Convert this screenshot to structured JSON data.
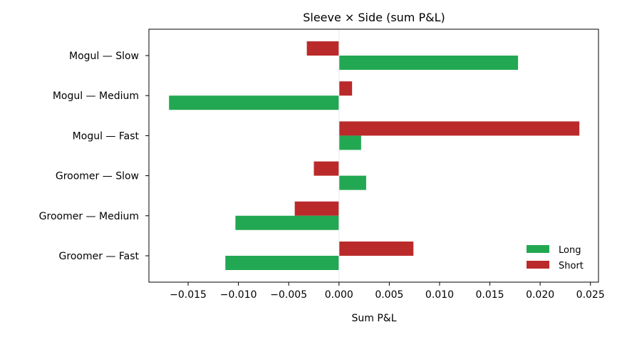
{
  "chart_data": {
    "type": "bar",
    "orientation": "horizontal",
    "title": "Sleeve × Side (sum P&L)",
    "xlabel": "Sum P&L",
    "ylabel": "",
    "categories": [
      "Mogul — Slow",
      "Mogul — Medium",
      "Mogul — Fast",
      "Groomer — Slow",
      "Groomer — Medium",
      "Groomer — Fast"
    ],
    "series": [
      {
        "name": "Long",
        "color": "#22a852",
        "values": [
          0.0178,
          -0.0169,
          0.0022,
          0.0027,
          -0.0103,
          -0.0113
        ]
      },
      {
        "name": "Short",
        "color": "#bb2a2a",
        "values": [
          -0.0032,
          0.0013,
          0.0239,
          -0.0025,
          -0.0044,
          0.0074
        ]
      }
    ],
    "xlim": [
      -0.0189,
      0.0258
    ],
    "xticks": [
      -0.015,
      -0.01,
      -0.005,
      0.0,
      0.005,
      0.01,
      0.015,
      0.02,
      0.025
    ],
    "xtick_labels": [
      "−0.015",
      "−0.010",
      "−0.005",
      "0.000",
      "0.005",
      "0.010",
      "0.015",
      "0.020",
      "0.025"
    ],
    "grid": false,
    "legend_position": "bottom-right"
  }
}
